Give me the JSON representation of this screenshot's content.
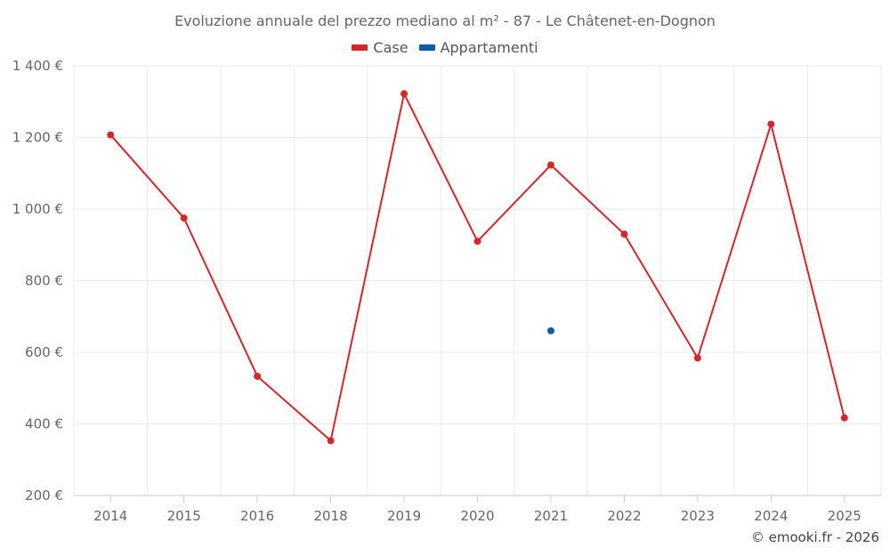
{
  "title": "Evoluzione annuale del prezzo mediano al m² - 87 - Le Châtenet-en-Dognon",
  "credit": "© emooki.fr - 2026",
  "chart_data": {
    "type": "line",
    "title": "Evoluzione annuale del prezzo mediano al m² - 87 - Le Châtenet-en-Dognon",
    "xlabel": "",
    "ylabel": "",
    "categories": [
      "2014",
      "2015",
      "2016",
      "2018",
      "2019",
      "2020",
      "2021",
      "2022",
      "2023",
      "2024",
      "2025"
    ],
    "ylim": [
      200,
      1400
    ],
    "yticks": [
      200,
      400,
      600,
      800,
      1000,
      1200,
      1400
    ],
    "ytick_labels": [
      "200 €",
      "400 €",
      "600 €",
      "800 €",
      "1 000 €",
      "1 200 €",
      "1 400 €"
    ],
    "grid": true,
    "legend_position": "top-center",
    "series": [
      {
        "name": "Case",
        "color": "#d62728",
        "values": [
          1207,
          975,
          533,
          353,
          1322,
          910,
          1123,
          930,
          584,
          1237,
          417
        ]
      },
      {
        "name": "Appartamenti",
        "color": "#0a5f9e",
        "values": [
          null,
          null,
          null,
          null,
          null,
          null,
          660,
          null,
          null,
          null,
          null
        ]
      }
    ]
  }
}
